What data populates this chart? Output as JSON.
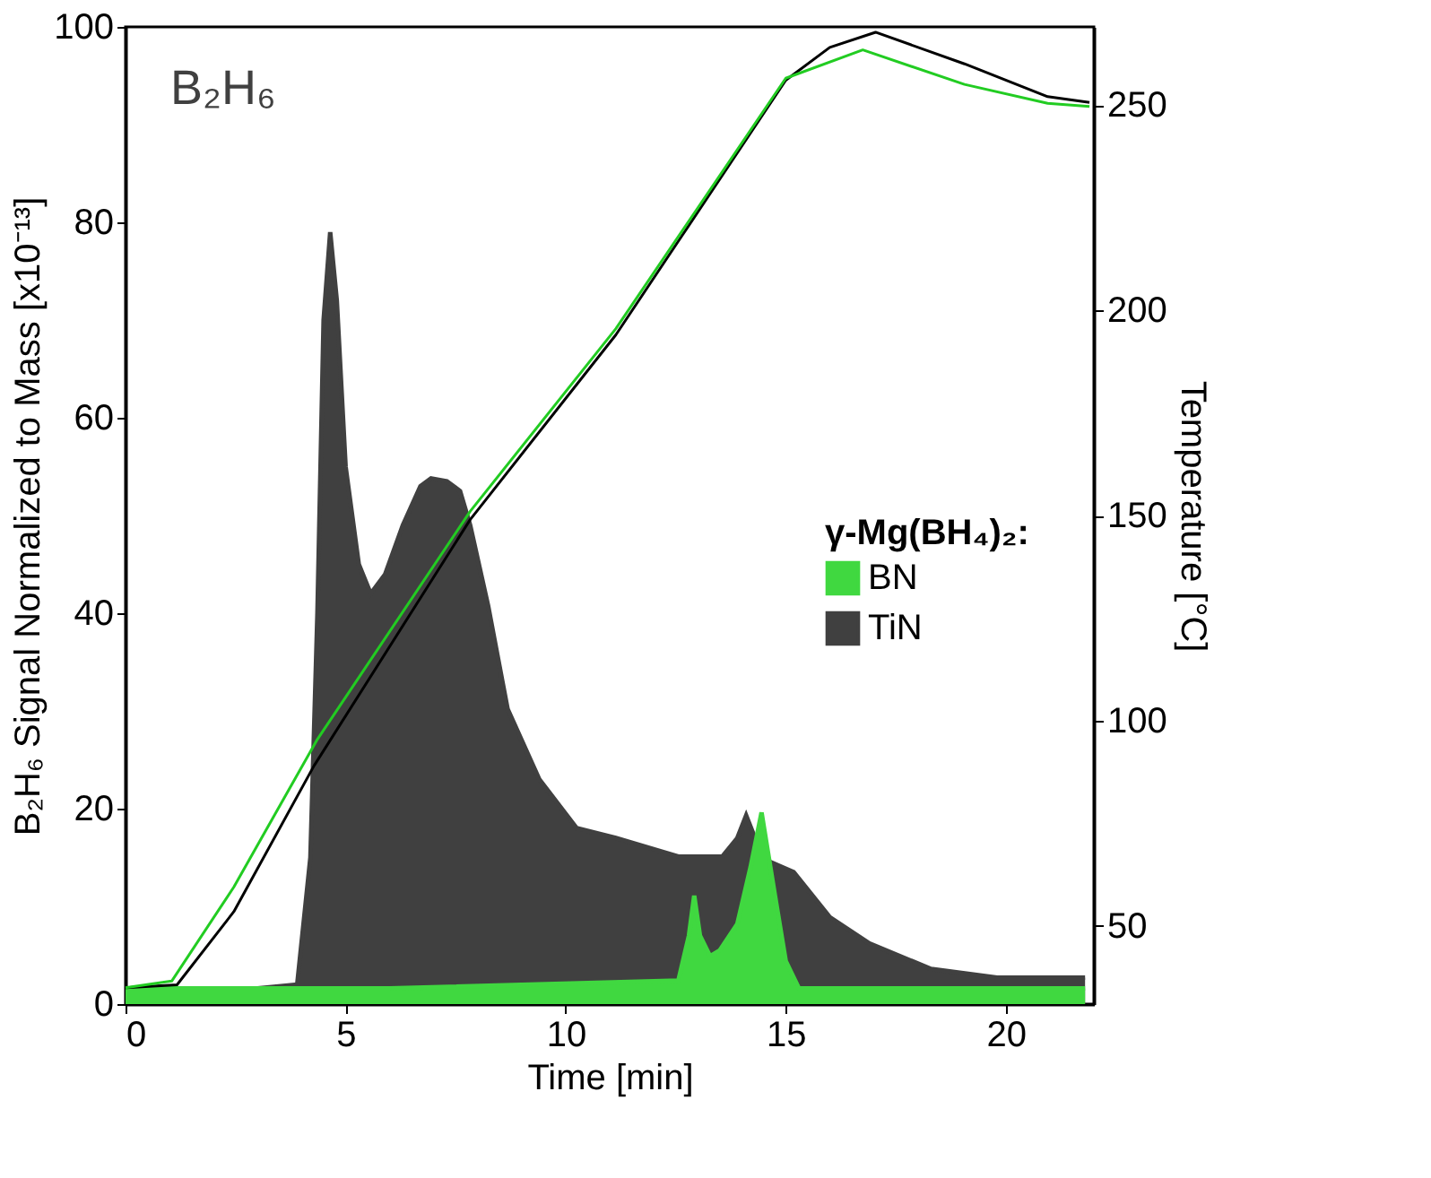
{
  "chart_data": {
    "type": "area",
    "xlabel": "Time [min]",
    "ylabel": "B₂H₆ Signal Normalized to Mass [x10⁻¹³]",
    "y2label": "Temperature [°C]",
    "legend_title": "γ-Mg(BH₄)₂:",
    "legend": "right",
    "grid": false,
    "annotations": [
      "B₂H₆"
    ],
    "xlim": [
      0,
      22
    ],
    "xticks": [
      0,
      5,
      10,
      15,
      20
    ],
    "ylim": [
      0,
      100
    ],
    "yticks": [
      0,
      20,
      40,
      60,
      80,
      100
    ],
    "y2lim": [
      31,
      269
    ],
    "y2ticks": [
      50,
      100,
      150,
      200,
      250
    ],
    "series": [
      {
        "name": "TiN",
        "color": "#404040",
        "x": [
          0,
          3.0,
          3.9,
          4.2,
          4.36,
          4.5,
          4.65,
          4.8,
          5.0,
          5.3,
          5.57,
          5.9,
          6.3,
          6.7,
          6.94,
          7.3,
          7.6,
          7.83,
          8.24,
          8.68,
          9.4,
          10.25,
          11.14,
          12.56,
          13.56,
          13.9,
          14.1,
          14.3,
          14.57,
          15.18,
          16.0,
          16.9,
          18.3,
          19.8,
          21.8
        ],
        "values": [
          1.6,
          1.6,
          2.0,
          15,
          40,
          70,
          79,
          72,
          55,
          45,
          42,
          44,
          49,
          53,
          53.8,
          53.5,
          52.5,
          49,
          40.7,
          30.2,
          23,
          18,
          17,
          15.1,
          15.1,
          17,
          19.3,
          17,
          14.7,
          13.5,
          8.9,
          6.2,
          3.6,
          2.7,
          2.7
        ]
      },
      {
        "name": "BN",
        "color": "#40d840",
        "x": [
          0,
          6,
          12.56,
          12.8,
          12.92,
          13.05,
          13.28,
          13.5,
          13.9,
          14.2,
          14.45,
          14.74,
          15.0,
          15.3,
          18,
          21.8
        ],
        "values": [
          1.6,
          1.6,
          2.4,
          7,
          11.1,
          7,
          4.9,
          5.5,
          8.2,
          14,
          19.6,
          11.5,
          4.4,
          1.6,
          1.6,
          1.6
        ]
      },
      {
        "type": "line",
        "axis": "y2",
        "color": "#000000",
        "x": [
          0,
          1.17,
          2.46,
          4.28,
          7.83,
          11.14,
          15.0,
          16.0,
          17.04,
          19.06,
          20.95,
          21.9
        ],
        "values": [
          35,
          35.7,
          53.5,
          89,
          149,
          194,
          256,
          264,
          267.7,
          260,
          252,
          250.6
        ]
      },
      {
        "type": "line",
        "axis": "y2",
        "color": "#22cc22",
        "x": [
          0,
          1.05,
          2.46,
          4.36,
          7.83,
          11.14,
          15.0,
          16.75,
          19.06,
          20.95,
          21.9
        ],
        "values": [
          35,
          36.6,
          59.5,
          95.5,
          151,
          195.5,
          256.5,
          263.4,
          255,
          250.4,
          249.6
        ]
      }
    ]
  }
}
